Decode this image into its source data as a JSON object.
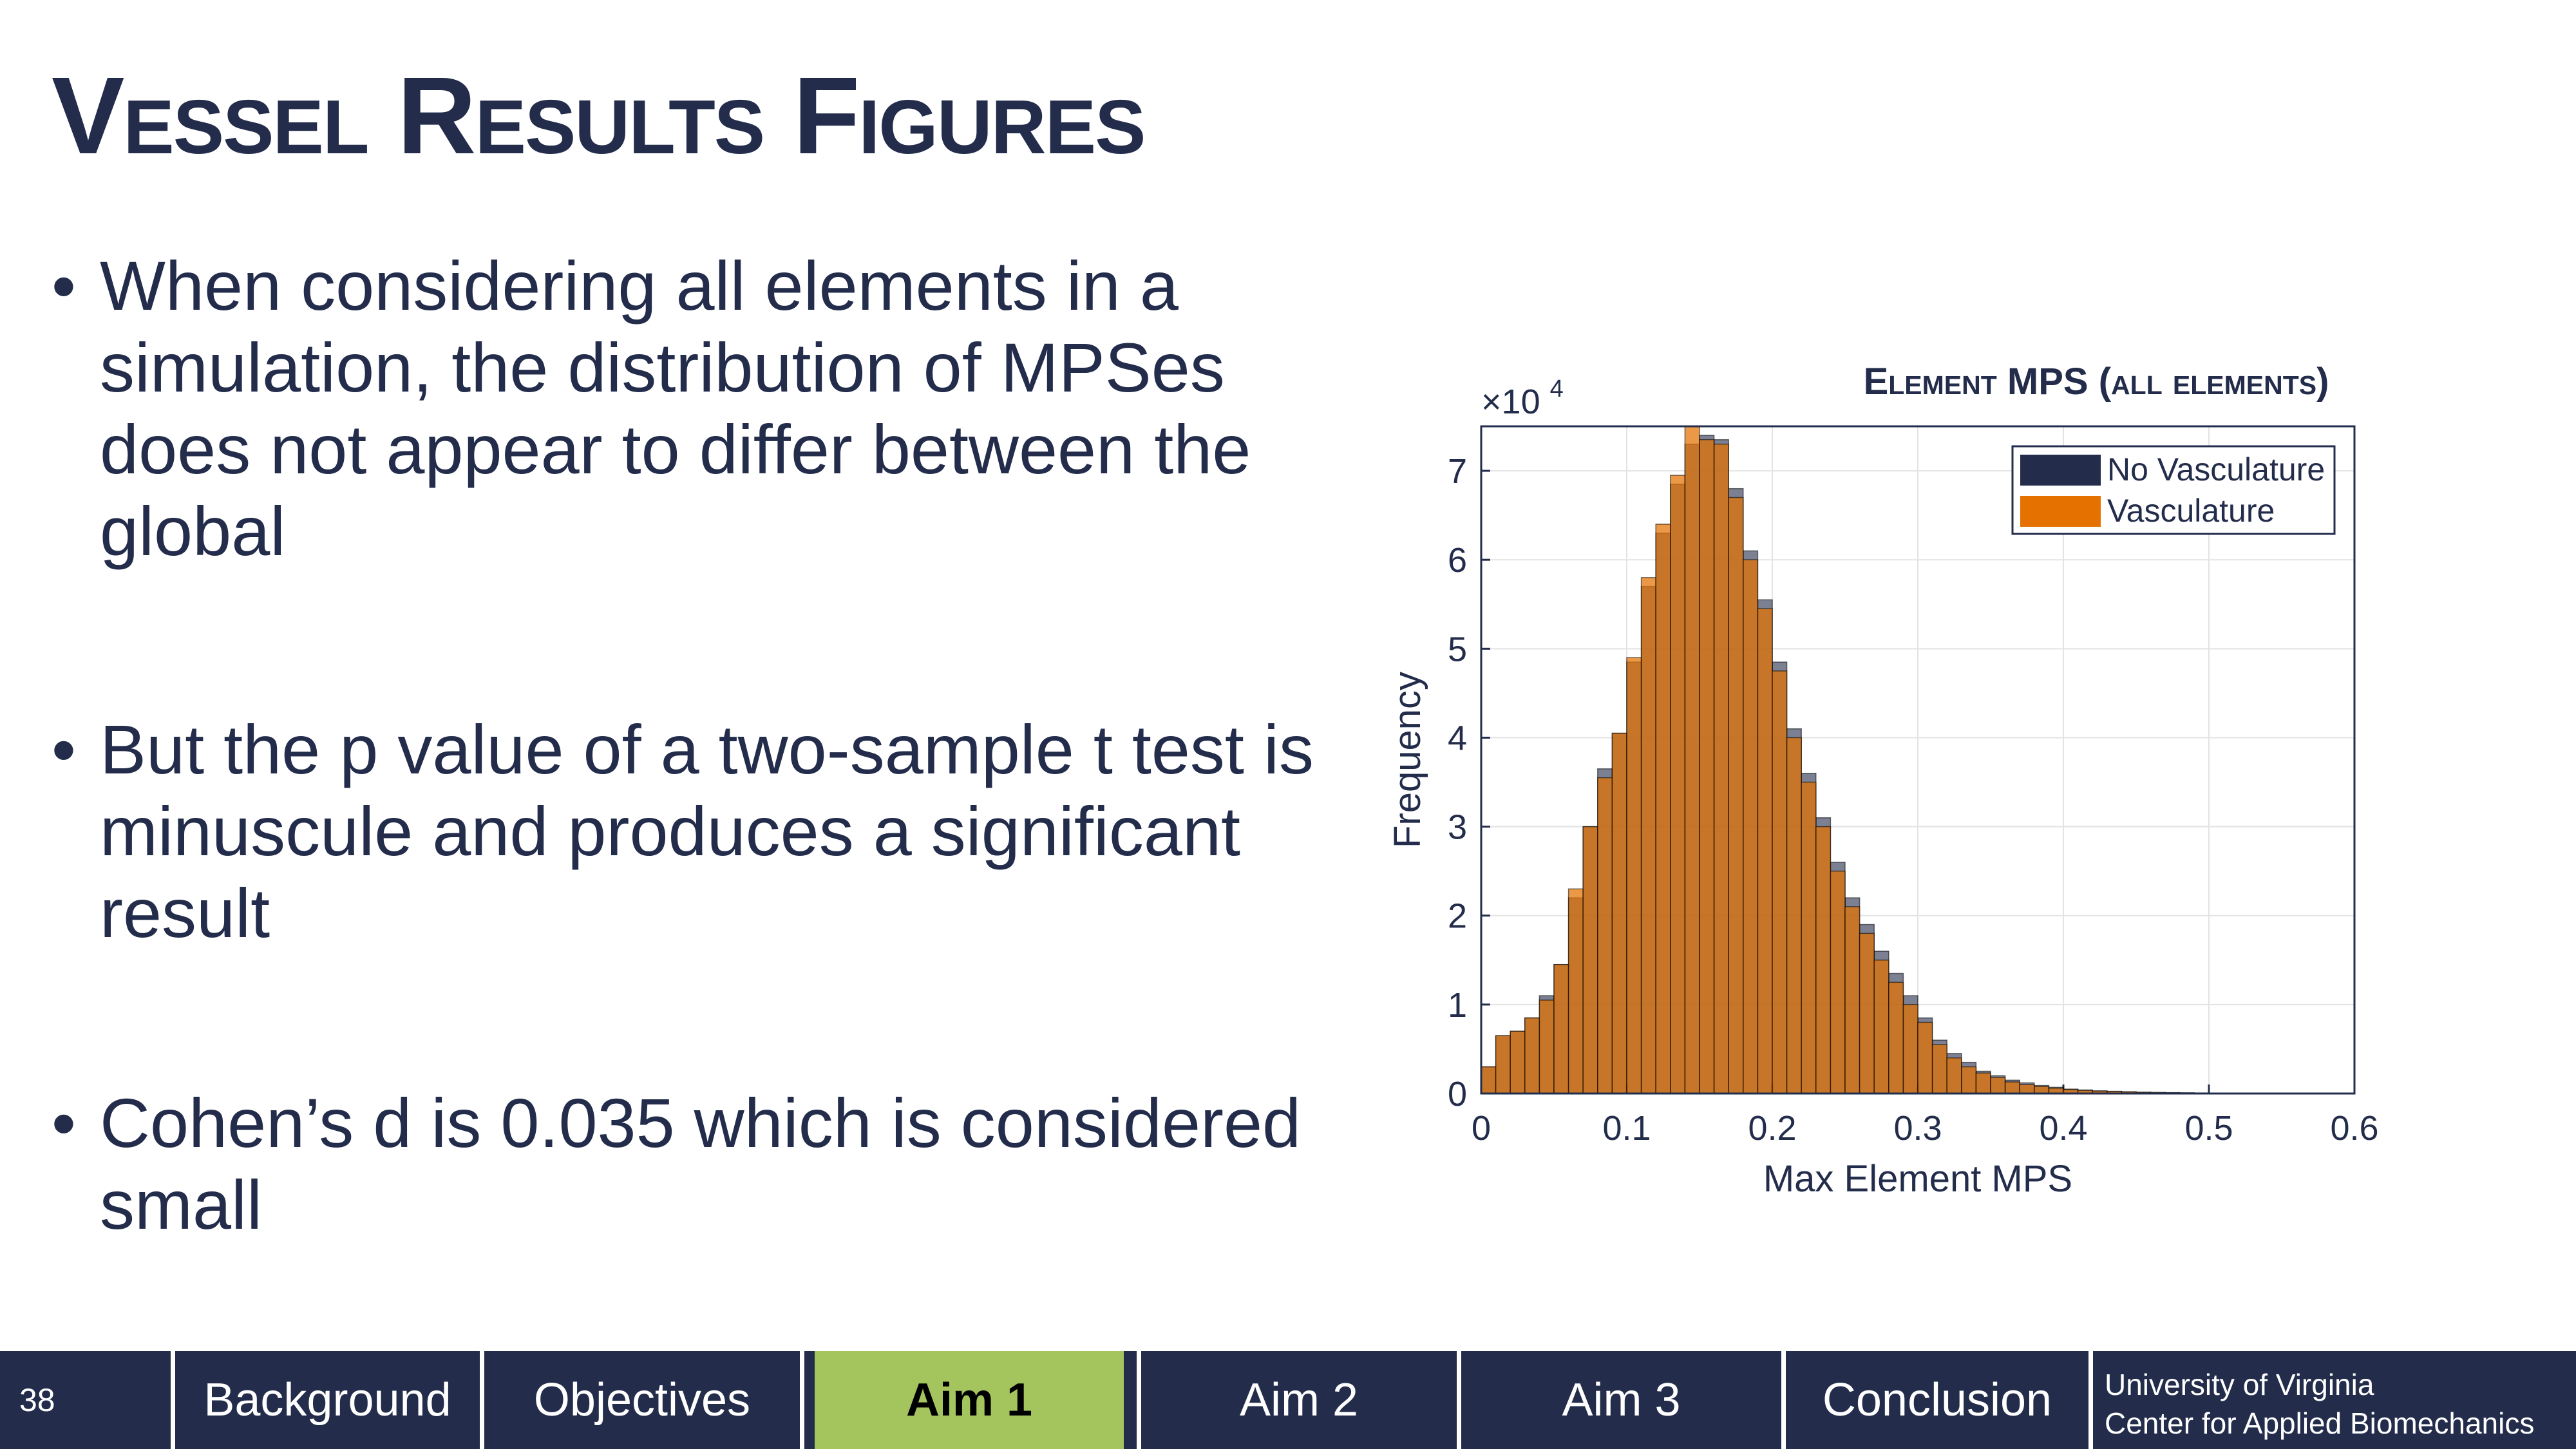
{
  "slide": {
    "title": "Vessel Results Figures",
    "bullets": [
      "When considering all elements in a simulation, the distribution of MPSes does not appear to differ between the global",
      "But the p value of a two-sample t test is minuscule and produces a significant result",
      "Cohen’s d is 0.035 which is considered small"
    ]
  },
  "footer": {
    "slide_number": "38",
    "nav": [
      "Background",
      "Objectives",
      "Aim 1",
      "Aim 2",
      "Aim 3",
      "Conclusion"
    ],
    "active": "Aim 1",
    "affiliation_line1": "University of Virginia",
    "affiliation_line2": "Center for Applied Biomechanics"
  },
  "colors": {
    "navy": "#232d4b",
    "accent_green": "#a4c45e",
    "orange": "#e57200"
  },
  "chart_data": {
    "type": "bar",
    "title": "Element MPS (all elements)",
    "xlabel": "Max Element MPS",
    "ylabel": "Frequency",
    "y_multiplier_base": "×10",
    "y_multiplier_exp": "4",
    "xlim": [
      0,
      0.6
    ],
    "ylim": [
      0,
      75000
    ],
    "xticks": [
      "0",
      "0.1",
      "0.2",
      "0.3",
      "0.4",
      "0.5",
      "0.6"
    ],
    "yticks": [
      "0",
      "1",
      "2",
      "3",
      "4",
      "5",
      "6",
      "7"
    ],
    "bin_width": 0.01,
    "grid": true,
    "legend_position": "top-right",
    "series": [
      {
        "name": "No Vasculature",
        "color": "#232d4b",
        "values": [
          3000,
          6500,
          7000,
          8500,
          11000,
          14500,
          22000,
          30000,
          36500,
          40500,
          48500,
          57000,
          63000,
          68500,
          73000,
          74000,
          73500,
          68000,
          61000,
          55500,
          48500,
          41000,
          36000,
          31000,
          26000,
          22000,
          19000,
          16000,
          13500,
          11000,
          8500,
          6000,
          4500,
          3500,
          2500,
          2000,
          1500,
          1200,
          900,
          700,
          500,
          400,
          300,
          250,
          200,
          150,
          120,
          100,
          80,
          60,
          50,
          40,
          30,
          20,
          20,
          10,
          10,
          10,
          10,
          5
        ]
      },
      {
        "name": "Vasculature",
        "color": "#e57200",
        "values": [
          3000,
          6500,
          7000,
          8500,
          10500,
          14500,
          23000,
          30000,
          35500,
          40500,
          49000,
          58000,
          64000,
          69500,
          75000,
          73500,
          73000,
          67000,
          60000,
          54500,
          47500,
          40000,
          35000,
          30000,
          25000,
          21000,
          18000,
          15000,
          12500,
          10000,
          8000,
          5500,
          4000,
          3000,
          2300,
          1800,
          1300,
          1000,
          800,
          600,
          450,
          350,
          280,
          220,
          180,
          140,
          110,
          90,
          70,
          55,
          45,
          35,
          25,
          20,
          15,
          10,
          10,
          5,
          5,
          5
        ]
      }
    ]
  }
}
